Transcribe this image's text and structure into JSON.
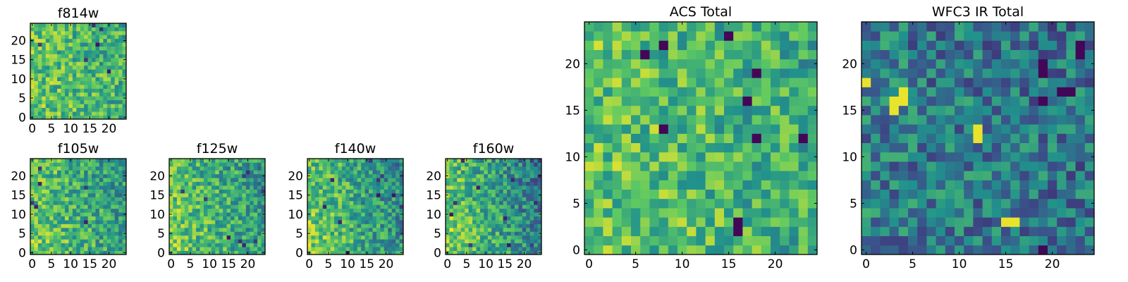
{
  "chart_data": [
    {
      "id": "f814w",
      "type": "heatmap",
      "title": "f814w",
      "xlim": [
        0,
        24
      ],
      "ylim": [
        0,
        24
      ],
      "xticks": [
        0,
        5,
        10,
        15,
        20
      ],
      "yticks": [
        0,
        5,
        10,
        15,
        20
      ],
      "seed": 11,
      "gradient": 0.4,
      "hotspots": [],
      "darkspots": 6
    },
    {
      "id": "f105w",
      "type": "heatmap",
      "title": "f105w",
      "xlim": [
        0,
        24
      ],
      "ylim": [
        0,
        24
      ],
      "xticks": [
        0,
        5,
        10,
        15,
        20
      ],
      "yticks": [
        0,
        5,
        10,
        15,
        20
      ],
      "seed": 23,
      "gradient": 0.9,
      "hotspots": [],
      "darkspots": 6
    },
    {
      "id": "f125w",
      "type": "heatmap",
      "title": "f125w",
      "xlim": [
        0,
        24
      ],
      "ylim": [
        0,
        24
      ],
      "xticks": [
        0,
        5,
        10,
        15,
        20
      ],
      "yticks": [
        0,
        5,
        10,
        15,
        20
      ],
      "seed": 37,
      "gradient": 0.9,
      "hotspots": [],
      "darkspots": 9
    },
    {
      "id": "f140w",
      "type": "heatmap",
      "title": "f140w",
      "xlim": [
        0,
        24
      ],
      "ylim": [
        0,
        24
      ],
      "xticks": [
        0,
        5,
        10,
        15,
        20
      ],
      "yticks": [
        0,
        5,
        10,
        15,
        20
      ],
      "seed": 51,
      "gradient": 1.2,
      "hotspots": [],
      "darkspots": 10
    },
    {
      "id": "f160w",
      "type": "heatmap",
      "title": "f160w",
      "xlim": [
        0,
        24
      ],
      "ylim": [
        0,
        24
      ],
      "xticks": [
        0,
        5,
        10,
        15,
        20
      ],
      "yticks": [
        0,
        5,
        10,
        15,
        20
      ],
      "seed": 67,
      "gradient": 1.5,
      "hotspots": [],
      "darkspots": 10
    },
    {
      "id": "acs",
      "type": "heatmap",
      "title": "ACS Total",
      "xlim": [
        0,
        24
      ],
      "ylim": [
        0,
        24
      ],
      "xticks": [
        0,
        5,
        10,
        15,
        20
      ],
      "yticks": [
        0,
        5,
        10,
        15,
        20
      ],
      "seed": 79,
      "gradient": 0.5,
      "hotspots": [],
      "darkspots": 0,
      "dark_cells": [
        [
          16,
          2
        ],
        [
          16,
          3
        ],
        [
          8,
          13
        ],
        [
          18,
          12
        ],
        [
          23,
          12
        ],
        [
          17,
          16
        ],
        [
          18,
          19
        ],
        [
          8,
          22
        ],
        [
          15,
          23
        ],
        [
          6,
          21
        ]
      ]
    },
    {
      "id": "wfc3",
      "type": "heatmap",
      "title": "WFC3 IR Total",
      "xlim": [
        0,
        24
      ],
      "ylim": [
        0,
        24
      ],
      "xticks": [
        0,
        5,
        10,
        15,
        20
      ],
      "yticks": [
        0,
        5,
        10,
        15,
        20
      ],
      "seed": 97,
      "gradient": 0.2,
      "hotspots": [
        [
          3,
          16
        ],
        [
          4,
          16
        ],
        [
          3,
          15
        ],
        [
          4,
          17
        ],
        [
          12,
          12
        ],
        [
          12,
          13
        ],
        [
          15,
          3
        ],
        [
          16,
          3
        ],
        [
          0,
          18
        ]
      ],
      "darkspots": 0,
      "dark_cells": [
        [
          19,
          0
        ],
        [
          19,
          16
        ],
        [
          19,
          19
        ],
        [
          19,
          20
        ],
        [
          23,
          21
        ],
        [
          23,
          22
        ],
        [
          22,
          17
        ],
        [
          21,
          17
        ]
      ],
      "base": 0.42
    }
  ],
  "colormap": {
    "name": "viridis",
    "stops": [
      "#440154",
      "#3b528b",
      "#21918c",
      "#5ec962",
      "#fde725"
    ]
  }
}
